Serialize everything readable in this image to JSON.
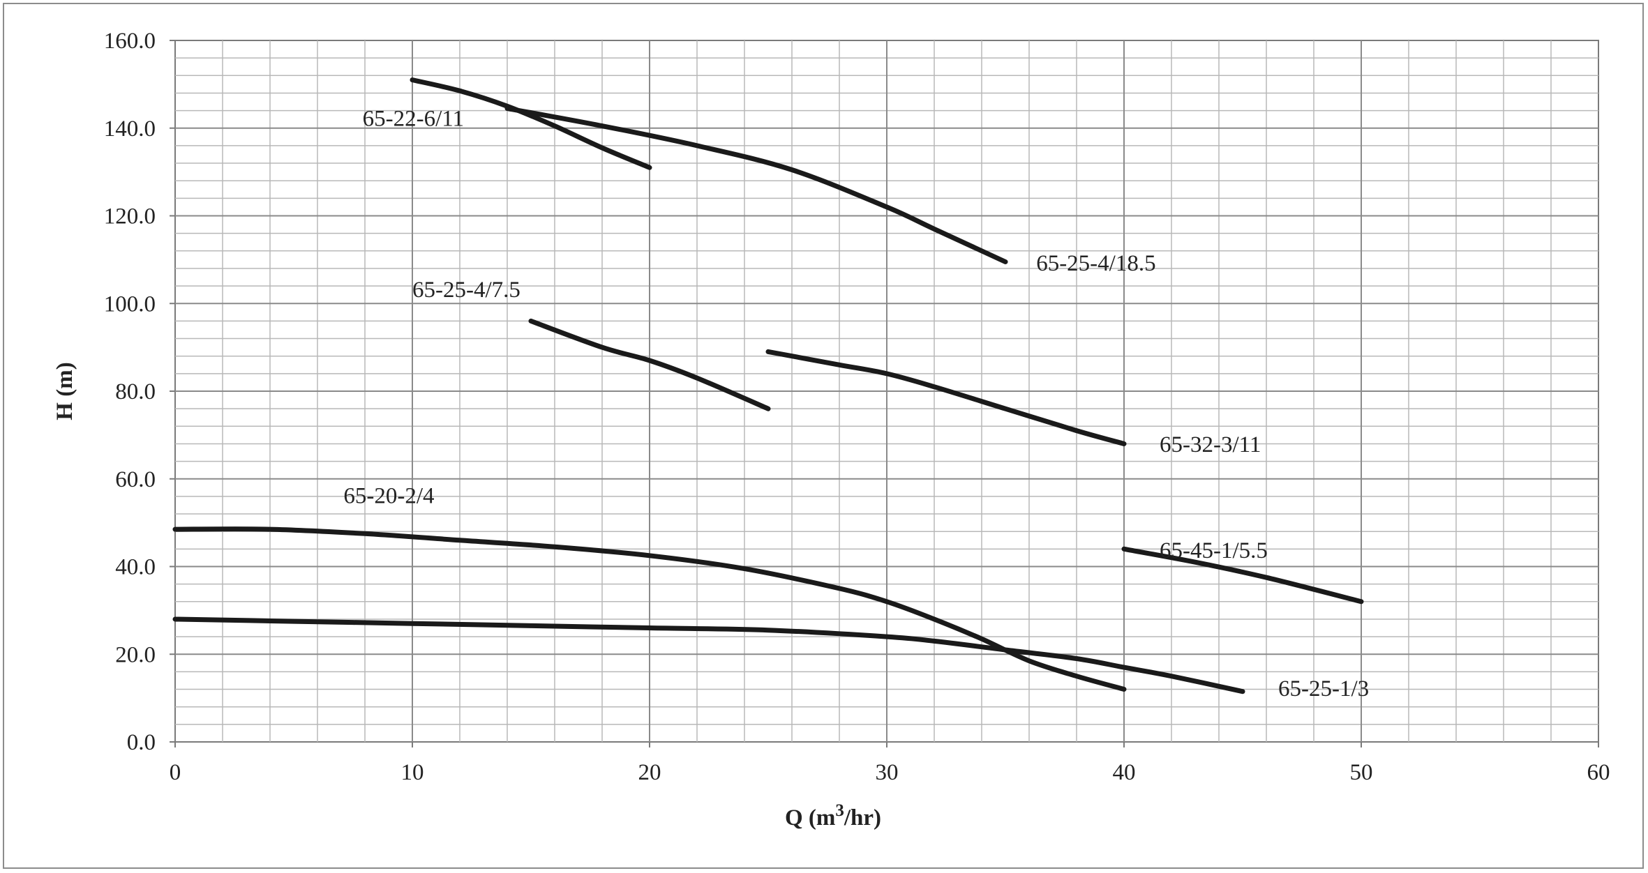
{
  "chart_data": {
    "type": "line",
    "title": "",
    "xlabel": "Q (m3/hr)",
    "xlabel_parts": {
      "prefix": "Q (m",
      "sup": "3",
      "suffix": "/hr)"
    },
    "ylabel": "H (m)",
    "xlim": [
      0,
      60
    ],
    "ylim": [
      0,
      160
    ],
    "x_major_step": 10,
    "x_minor_step": 2,
    "y_major_step": 20,
    "y_minor_step": 4,
    "x_tick_labels": [
      "0",
      "10",
      "20",
      "30",
      "40",
      "50",
      "60"
    ],
    "y_tick_labels": [
      "0.0",
      "20.0",
      "40.0",
      "60.0",
      "80.0",
      "100.0",
      "120.0",
      "140.0",
      "160.0"
    ],
    "grid": true,
    "legend": "none",
    "line_color": "#1a1a1a",
    "series": [
      {
        "name": "65-22-6/11",
        "points": [
          [
            10,
            151
          ],
          [
            12,
            148.5
          ],
          [
            14,
            145
          ],
          [
            16,
            140.5
          ],
          [
            18,
            135.5
          ],
          [
            20,
            131
          ]
        ]
      },
      {
        "name": "65-25-4/18.5",
        "points": [
          [
            14,
            144.5
          ],
          [
            18,
            140.5
          ],
          [
            22,
            136
          ],
          [
            26,
            130.5
          ],
          [
            30,
            122
          ],
          [
            32,
            117
          ],
          [
            35,
            109.5
          ]
        ]
      },
      {
        "name": "65-25-4/7.5",
        "points": [
          [
            15,
            96
          ],
          [
            18,
            90
          ],
          [
            20,
            87
          ],
          [
            22,
            83
          ],
          [
            25,
            76
          ]
        ]
      },
      {
        "name": "65-32-3/11",
        "points": [
          [
            25,
            89
          ],
          [
            28,
            86
          ],
          [
            30,
            84
          ],
          [
            32,
            81
          ],
          [
            35,
            76
          ],
          [
            38,
            71
          ],
          [
            40,
            68
          ]
        ]
      },
      {
        "name": "65-20-2/4",
        "points": [
          [
            0,
            48.5
          ],
          [
            4,
            48.5
          ],
          [
            8,
            47.5
          ],
          [
            12,
            46
          ],
          [
            16,
            44.5
          ],
          [
            20,
            42.5
          ],
          [
            24,
            39.5
          ],
          [
            28,
            35
          ],
          [
            30,
            32
          ],
          [
            32,
            28
          ],
          [
            34,
            23.5
          ],
          [
            36,
            18.5
          ],
          [
            38,
            15
          ],
          [
            40,
            12
          ]
        ]
      },
      {
        "name": "65-25-1/3",
        "points": [
          [
            0,
            28
          ],
          [
            5,
            27.5
          ],
          [
            10,
            27
          ],
          [
            15,
            26.5
          ],
          [
            20,
            26
          ],
          [
            25,
            25.5
          ],
          [
            30,
            24
          ],
          [
            32,
            23
          ],
          [
            35,
            21
          ],
          [
            38,
            19
          ],
          [
            40,
            17
          ],
          [
            42,
            15
          ],
          [
            45,
            11.5
          ]
        ]
      },
      {
        "name": "65-45-1/5.5",
        "points": [
          [
            40,
            44
          ],
          [
            43,
            41
          ],
          [
            46,
            37.5
          ],
          [
            50,
            32
          ]
        ]
      }
    ],
    "annotations": [
      {
        "text": "65-22-6/11",
        "x": 7.9,
        "y": 140.5
      },
      {
        "text": "65-25-4/18.5",
        "x": 36.3,
        "y": 107.5
      },
      {
        "text": "65-25-4/7.5",
        "x": 10.0,
        "y": 101.5
      },
      {
        "text": "65-32-3/11",
        "x": 41.5,
        "y": 66.2
      },
      {
        "text": "65-20-2/4",
        "x": 7.1,
        "y": 54.5
      },
      {
        "text": "65-45-1/5.5",
        "x": 41.5,
        "y": 42.0
      },
      {
        "text": "65-25-1/3",
        "x": 46.5,
        "y": 10.5
      }
    ]
  }
}
